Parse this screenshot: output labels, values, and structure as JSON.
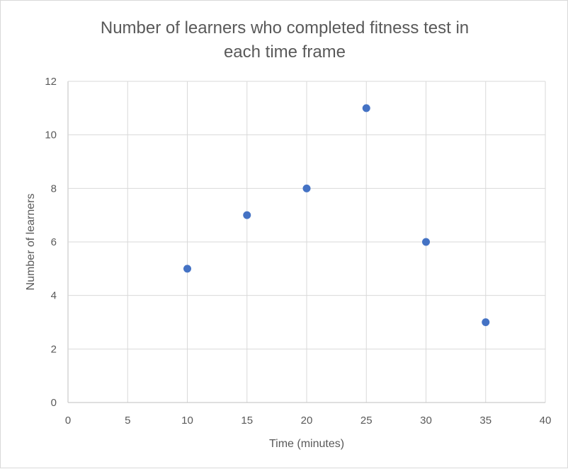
{
  "chart_data": {
    "type": "scatter",
    "title_lines": [
      "Number of learners who completed fitness test in",
      "each time frame"
    ],
    "xlabel": "Time (minutes)",
    "ylabel": "Number of learners",
    "xlim": [
      0,
      40
    ],
    "ylim": [
      0,
      12
    ],
    "xticks": [
      0,
      5,
      10,
      15,
      20,
      25,
      30,
      35,
      40
    ],
    "yticks": [
      0,
      2,
      4,
      6,
      8,
      10,
      12
    ],
    "grid": true,
    "marker_color": "#4472C4",
    "points": [
      {
        "x": 10,
        "y": 5
      },
      {
        "x": 15,
        "y": 7
      },
      {
        "x": 20,
        "y": 8
      },
      {
        "x": 25,
        "y": 11
      },
      {
        "x": 30,
        "y": 6
      },
      {
        "x": 35,
        "y": 3
      }
    ]
  }
}
